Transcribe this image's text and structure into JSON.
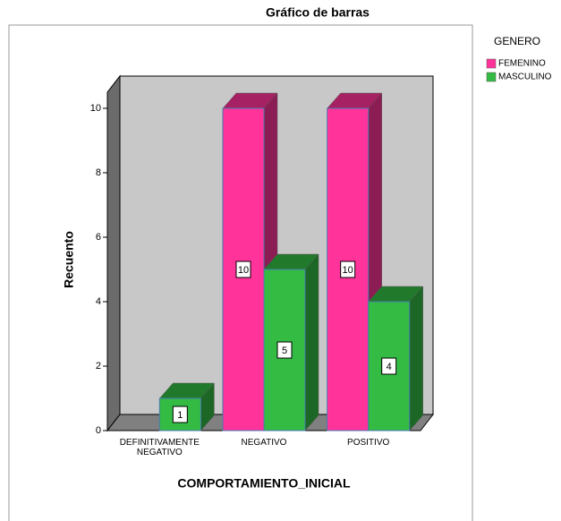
{
  "chart_data": {
    "type": "bar3d",
    "title": "Gráfico de barras",
    "x_label": "COMPORTAMIENTO_INICIAL",
    "y_label": "Recuento",
    "categories": [
      "DEFINITIVAMENTE NEGATIVO",
      "NEGATIVO",
      "POSITIVO"
    ],
    "legend_title": "GENERO",
    "series": [
      {
        "name": "FEMENINO",
        "color": "#ff3399",
        "values": [
          null,
          10,
          10
        ]
      },
      {
        "name": "MASCULINO",
        "color": "#33bb44",
        "values": [
          1,
          5,
          4
        ]
      }
    ],
    "ylim": [
      0,
      10.5
    ],
    "yticks": [
      0,
      2,
      4,
      6,
      8,
      10
    ]
  }
}
